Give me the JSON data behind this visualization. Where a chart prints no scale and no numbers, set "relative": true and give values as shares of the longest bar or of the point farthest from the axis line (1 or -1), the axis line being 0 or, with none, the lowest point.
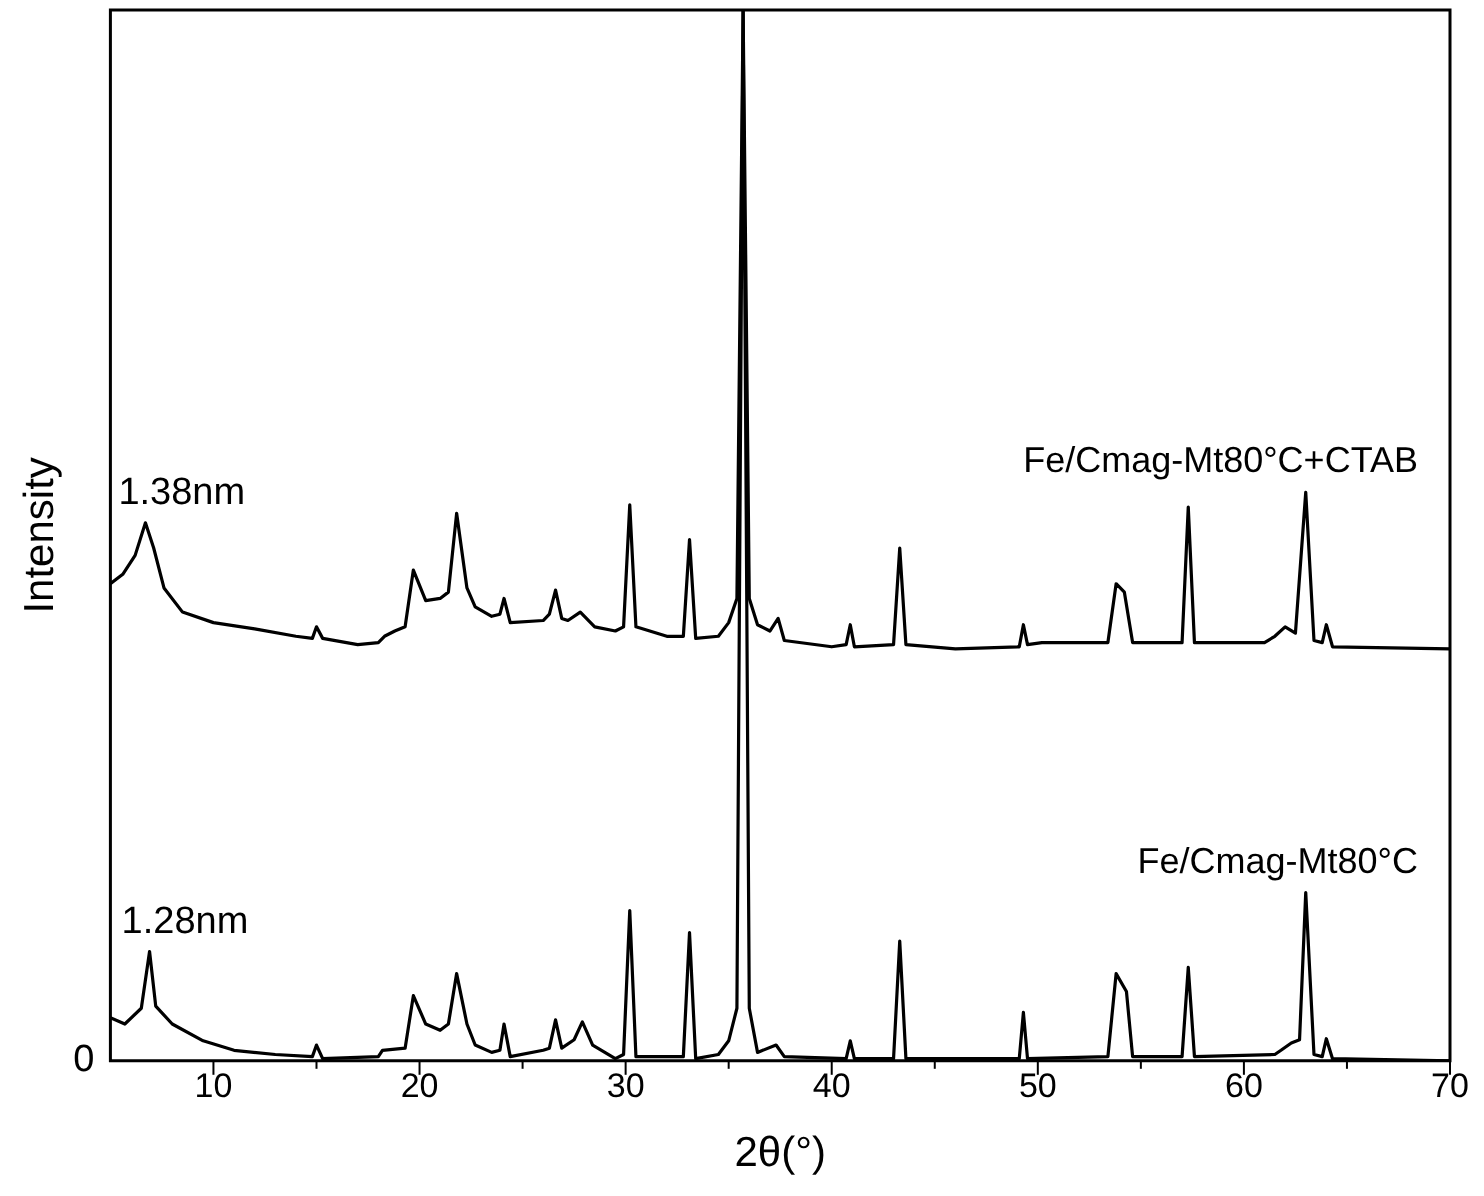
{
  "chart_data": {
    "type": "line",
    "relative": true,
    "xlabel": "2θ(°)",
    "ylabel": "Intensity",
    "xlim": [
      5,
      70
    ],
    "xticks": [
      10,
      20,
      30,
      40,
      50,
      60,
      70
    ],
    "grid": false,
    "legend": false,
    "marker": "none",
    "line_style": "solid",
    "series": [
      {
        "name": "Fe/Cmag-Mt80°C+CTAB",
        "color": "#000000",
        "x": [
          5,
          5.6,
          6.2,
          6.7,
          7.1,
          7.6,
          8.5,
          10,
          12,
          14,
          14.8,
          15,
          15.3,
          17,
          18,
          18.3,
          18.8,
          19.3,
          19.7,
          20.3,
          21,
          21.4,
          21.8,
          22.3,
          22.7,
          23.5,
          23.9,
          24.1,
          24.4,
          26,
          26.3,
          26.6,
          26.9,
          27.2,
          27.8,
          28.5,
          29.5,
          29.9,
          30.2,
          30.5,
          32,
          32.8,
          33.1,
          33.4,
          34.5,
          35,
          35.4,
          35.7,
          36,
          36.4,
          37,
          37.4,
          37.7,
          40,
          40.7,
          40.9,
          41.1,
          43,
          43.3,
          43.6,
          46,
          49.1,
          49.3,
          49.5,
          50.2,
          53.4,
          53.8,
          54.2,
          54.6,
          57,
          57.3,
          57.6,
          61,
          61.5,
          62,
          62.5,
          63,
          63.4,
          63.8,
          64,
          64.3,
          70
        ],
        "values": [
          0.454,
          0.463,
          0.481,
          0.512,
          0.488,
          0.45,
          0.427,
          0.417,
          0.411,
          0.404,
          0.402,
          0.413,
          0.402,
          0.396,
          0.398,
          0.404,
          0.409,
          0.413,
          0.467,
          0.438,
          0.44,
          0.446,
          0.521,
          0.45,
          0.432,
          0.423,
          0.425,
          0.44,
          0.417,
          0.419,
          0.425,
          0.448,
          0.421,
          0.419,
          0.427,
          0.413,
          0.409,
          0.413,
          0.529,
          0.413,
          0.404,
          0.404,
          0.496,
          0.402,
          0.404,
          0.417,
          0.44,
          1,
          0.44,
          0.415,
          0.409,
          0.421,
          0.4,
          0.394,
          0.396,
          0.415,
          0.394,
          0.396,
          0.488,
          0.396,
          0.392,
          0.394,
          0.415,
          0.396,
          0.398,
          0.398,
          0.454,
          0.446,
          0.398,
          0.398,
          0.527,
          0.398,
          0.398,
          0.404,
          0.413,
          0.407,
          0.541,
          0.4,
          0.398,
          0.415,
          0.394,
          0.392
        ]
      },
      {
        "name": "Fe/Cmag-Mt80°C",
        "color": "#000000",
        "x": [
          5,
          5.7,
          6.5,
          6.9,
          7.2,
          8,
          9.5,
          11,
          13,
          14.8,
          15,
          15.3,
          18,
          18.2,
          19.3,
          19.7,
          20.3,
          21,
          21.4,
          21.8,
          22.3,
          22.7,
          23.5,
          23.9,
          24.1,
          24.4,
          26,
          26.3,
          26.6,
          26.9,
          27.5,
          27.9,
          28.4,
          29.5,
          29.9,
          30.2,
          30.5,
          32,
          32.8,
          33.1,
          33.4,
          34.5,
          35,
          35.4,
          35.7,
          36,
          36.4,
          37.3,
          37.7,
          40.7,
          40.9,
          41.1,
          43,
          43.3,
          43.6,
          49.1,
          49.3,
          49.5,
          53.4,
          53.8,
          54.3,
          54.6,
          57,
          57.3,
          57.6,
          61.5,
          61.8,
          62.3,
          62.7,
          63,
          63.4,
          63.8,
          64,
          64.3,
          70
        ],
        "values": [
          0.041,
          0.035,
          0.05,
          0.104,
          0.052,
          0.035,
          0.019,
          0.01,
          0.006,
          0.004,
          0.015,
          0.002,
          0.004,
          0.01,
          0.012,
          0.062,
          0.035,
          0.029,
          0.035,
          0.083,
          0.035,
          0.015,
          0.008,
          0.01,
          0.035,
          0.004,
          0.01,
          0.012,
          0.039,
          0.012,
          0.02,
          0.037,
          0.015,
          0.002,
          0.006,
          0.143,
          0.004,
          0.004,
          0.004,
          0.122,
          0.002,
          0.006,
          0.019,
          0.05,
          1,
          0.05,
          0.008,
          0.015,
          0.004,
          0.002,
          0.019,
          0.002,
          0.002,
          0.114,
          0.002,
          0.002,
          0.046,
          0.002,
          0.004,
          0.083,
          0.066,
          0.004,
          0.004,
          0.089,
          0.004,
          0.006,
          0.01,
          0.017,
          0.02,
          0.16,
          0.006,
          0.004,
          0.021,
          0.002,
          0
        ]
      }
    ],
    "annotations": [
      {
        "text": "1.38nm",
        "x": 6.7,
        "y": 0.512
      },
      {
        "text": "1.28nm",
        "x": 6.9,
        "y": 0.104
      },
      "0"
    ]
  }
}
